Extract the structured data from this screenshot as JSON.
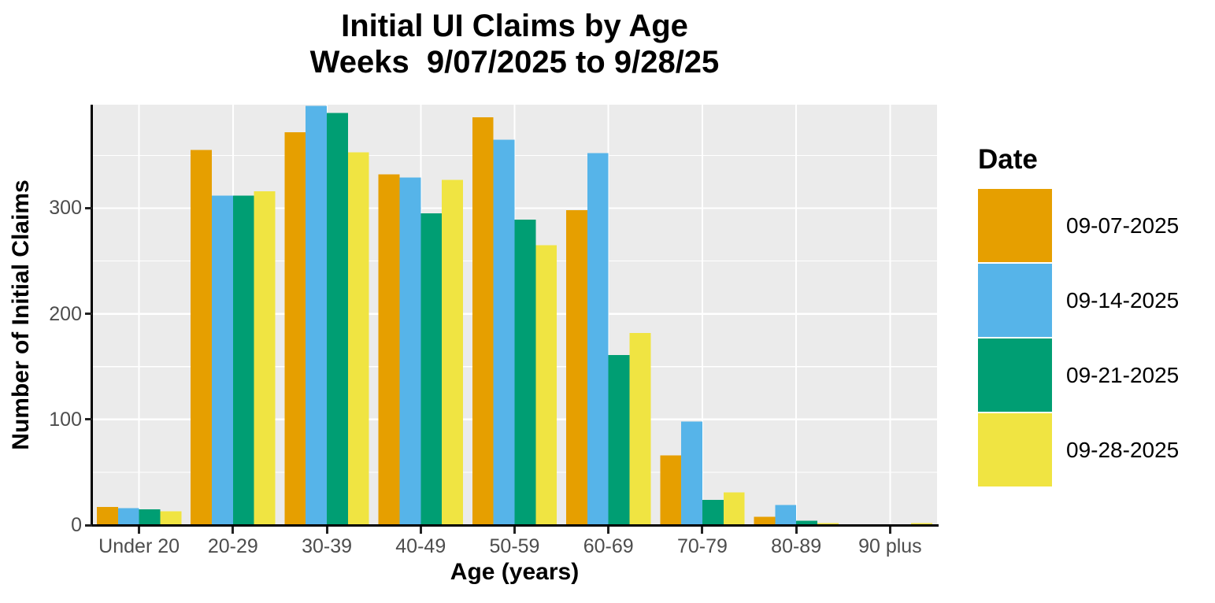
{
  "title": {
    "line1": "Initial UI Claims by Age",
    "line2": "Weeks  9/07/2025 to 9/28/25"
  },
  "chart_data": {
    "type": "bar",
    "title": "Initial UI Claims by Age — Weeks 9/07/2025 to 9/28/25",
    "xlabel": "Age (years)",
    "ylabel": "Number of Initial Claims",
    "legend_title": "Date",
    "legend_position": "right",
    "grid": true,
    "panel_background": "#EBEBEB",
    "grid_color": "#FFFFFF",
    "axis_text_color": "#4D4D4D",
    "categories": [
      "Under 20",
      "20-29",
      "30-39",
      "40-49",
      "50-59",
      "60-69",
      "70-79",
      "80-89",
      "90 plus"
    ],
    "yticks": [
      0,
      100,
      200,
      300
    ],
    "minor_gridlines": [
      50,
      150,
      250,
      350
    ],
    "ylim": [
      0,
      398
    ],
    "series": [
      {
        "name": "09-07-2025",
        "color": "#E69F00",
        "values": [
          17,
          355,
          372,
          332,
          386,
          298,
          66,
          8,
          0
        ]
      },
      {
        "name": "09-14-2025",
        "color": "#56B4E9",
        "values": [
          16,
          312,
          397,
          329,
          365,
          352,
          98,
          19,
          0
        ]
      },
      {
        "name": "09-21-2025",
        "color": "#009E73",
        "values": [
          15,
          312,
          390,
          295,
          289,
          161,
          24,
          4,
          0
        ]
      },
      {
        "name": "09-28-2025",
        "color": "#F0E442",
        "values": [
          13,
          316,
          353,
          327,
          265,
          182,
          31,
          2,
          2
        ]
      }
    ]
  }
}
